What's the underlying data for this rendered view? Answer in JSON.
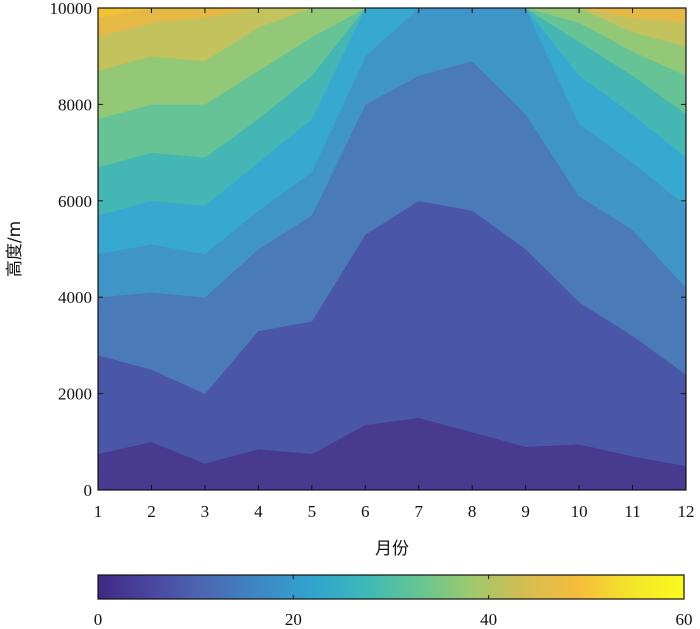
{
  "chart_data": {
    "type": "contour",
    "title": "",
    "xlabel": "月份",
    "ylabel": "高度/m",
    "xlim": [
      1,
      12
    ],
    "ylim": [
      0,
      10000
    ],
    "x_ticks": [
      "1",
      "2",
      "3",
      "4",
      "5",
      "6",
      "7",
      "8",
      "9",
      "10",
      "11",
      "12"
    ],
    "y_ticks": [
      "0",
      "2000",
      "4000",
      "6000",
      "8000",
      "10000"
    ],
    "colorbar": {
      "range": [
        0,
        60
      ],
      "ticks": [
        "0",
        "20",
        "40",
        "60"
      ],
      "colors": [
        "#3e2a84",
        "#4a46a0",
        "#4c68b3",
        "#3e87c4",
        "#31a3cf",
        "#3cb8b9",
        "#64c594",
        "#9dc96f",
        "#d4bd51",
        "#f5bd3c",
        "#f4e52a",
        "#fafa1e"
      ]
    },
    "levels": [
      5,
      10,
      15,
      20,
      25,
      30,
      35,
      40,
      45,
      50
    ],
    "contours": [
      {
        "level": 5,
        "altitude_by_month": [
          750,
          1000,
          550,
          850,
          750,
          1350,
          1500,
          1200,
          900,
          950,
          700,
          500
        ]
      },
      {
        "level": 10,
        "altitude_by_month": [
          2800,
          2500,
          2000,
          3300,
          3500,
          5300,
          6000,
          5800,
          5000,
          3900,
          3200,
          2400
        ]
      },
      {
        "level": 15,
        "altitude_by_month": [
          4000,
          4100,
          4000,
          5000,
          5700,
          8000,
          8600,
          8900,
          7800,
          6100,
          5400,
          4200
        ]
      },
      {
        "level": 20,
        "altitude_by_month": [
          4900,
          5100,
          4900,
          5800,
          6600,
          9000,
          10000,
          10000,
          10000,
          7600,
          6800,
          5900
        ]
      },
      {
        "level": 25,
        "altitude_by_month": [
          5700,
          6000,
          5900,
          6800,
          7700,
          10000,
          10000,
          10000,
          10000,
          8600,
          7800,
          6900
        ]
      },
      {
        "level": 30,
        "altitude_by_month": [
          6700,
          7000,
          6900,
          7700,
          8600,
          10000,
          10000,
          10000,
          10000,
          9300,
          8600,
          7800
        ]
      },
      {
        "level": 35,
        "altitude_by_month": [
          7700,
          8000,
          8000,
          8700,
          9400,
          10000,
          10000,
          10000,
          10000,
          9700,
          9100,
          8600
        ]
      },
      {
        "level": 40,
        "altitude_by_month": [
          8700,
          9000,
          8900,
          9600,
          10000,
          10000,
          10000,
          10000,
          10000,
          10000,
          9500,
          9200
        ]
      },
      {
        "level": 45,
        "altitude_by_month": [
          9400,
          9700,
          9800,
          10000,
          10000,
          10000,
          10000,
          10000,
          10000,
          10000,
          9800,
          9700
        ]
      },
      {
        "level": 50,
        "altitude_by_month": [
          9800,
          10000,
          10000,
          10000,
          10000,
          10000,
          10000,
          10000,
          10000,
          10000,
          10000,
          10000
        ]
      }
    ],
    "band_colors": [
      "#473a8f",
      "#4a56a7",
      "#4b7ab8",
      "#3f95c8",
      "#37a9d1",
      "#44b6b4",
      "#66c396",
      "#93c877",
      "#c3c25d",
      "#e6b947",
      "#f1c233"
    ],
    "grid": false,
    "legend": "colorbar-bottom"
  }
}
